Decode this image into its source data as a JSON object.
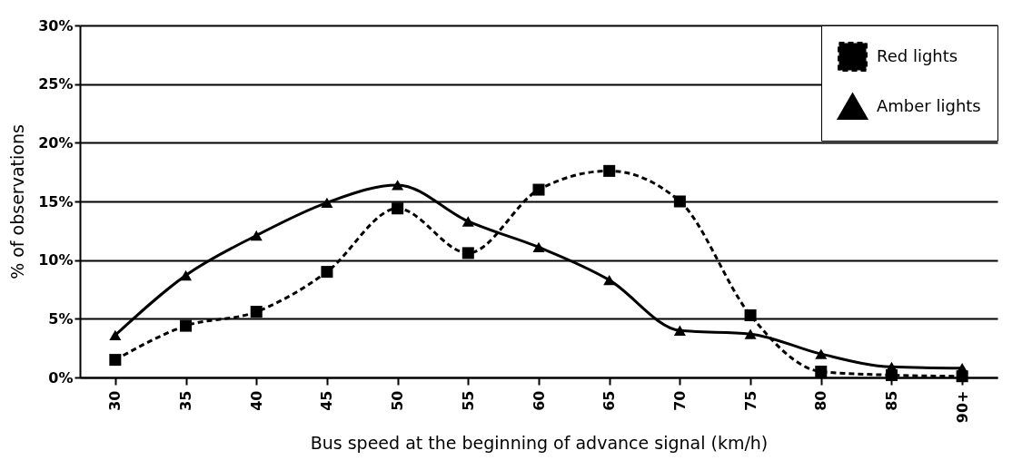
{
  "chart_data": {
    "type": "line",
    "xlabel": "Bus speed at the beginning of advance signal (km/h)",
    "ylabel": "% of observations",
    "categories": [
      "30",
      "35",
      "40",
      "45",
      "50",
      "55",
      "60",
      "65",
      "70",
      "75",
      "80",
      "85",
      "90+"
    ],
    "series": [
      {
        "name": "Red lights",
        "color": "#000000",
        "marker": "square",
        "line_style": "dashed",
        "values": [
          1.5,
          4.4,
          5.6,
          9.0,
          14.4,
          10.6,
          16.0,
          17.6,
          15.0,
          5.3,
          0.5,
          0.2,
          0.1
        ]
      },
      {
        "name": "Amber lights",
        "color": "#000000",
        "marker": "triangle",
        "line_style": "solid",
        "values": [
          3.6,
          8.7,
          12.1,
          14.9,
          16.4,
          13.3,
          11.1,
          8.3,
          4.0,
          3.7,
          2.0,
          0.9,
          0.8
        ]
      }
    ],
    "ylim": [
      0,
      30
    ],
    "yticks": [
      {
        "value": 0,
        "label": "0%"
      },
      {
        "value": 5,
        "label": "5%"
      },
      {
        "value": 10,
        "label": "10%"
      },
      {
        "value": 15,
        "label": "15%"
      },
      {
        "value": 20,
        "label": "20%"
      },
      {
        "value": 25,
        "label": "25%"
      },
      {
        "value": 30,
        "label": "30%"
      }
    ],
    "grid": "y",
    "legend": "top right"
  }
}
